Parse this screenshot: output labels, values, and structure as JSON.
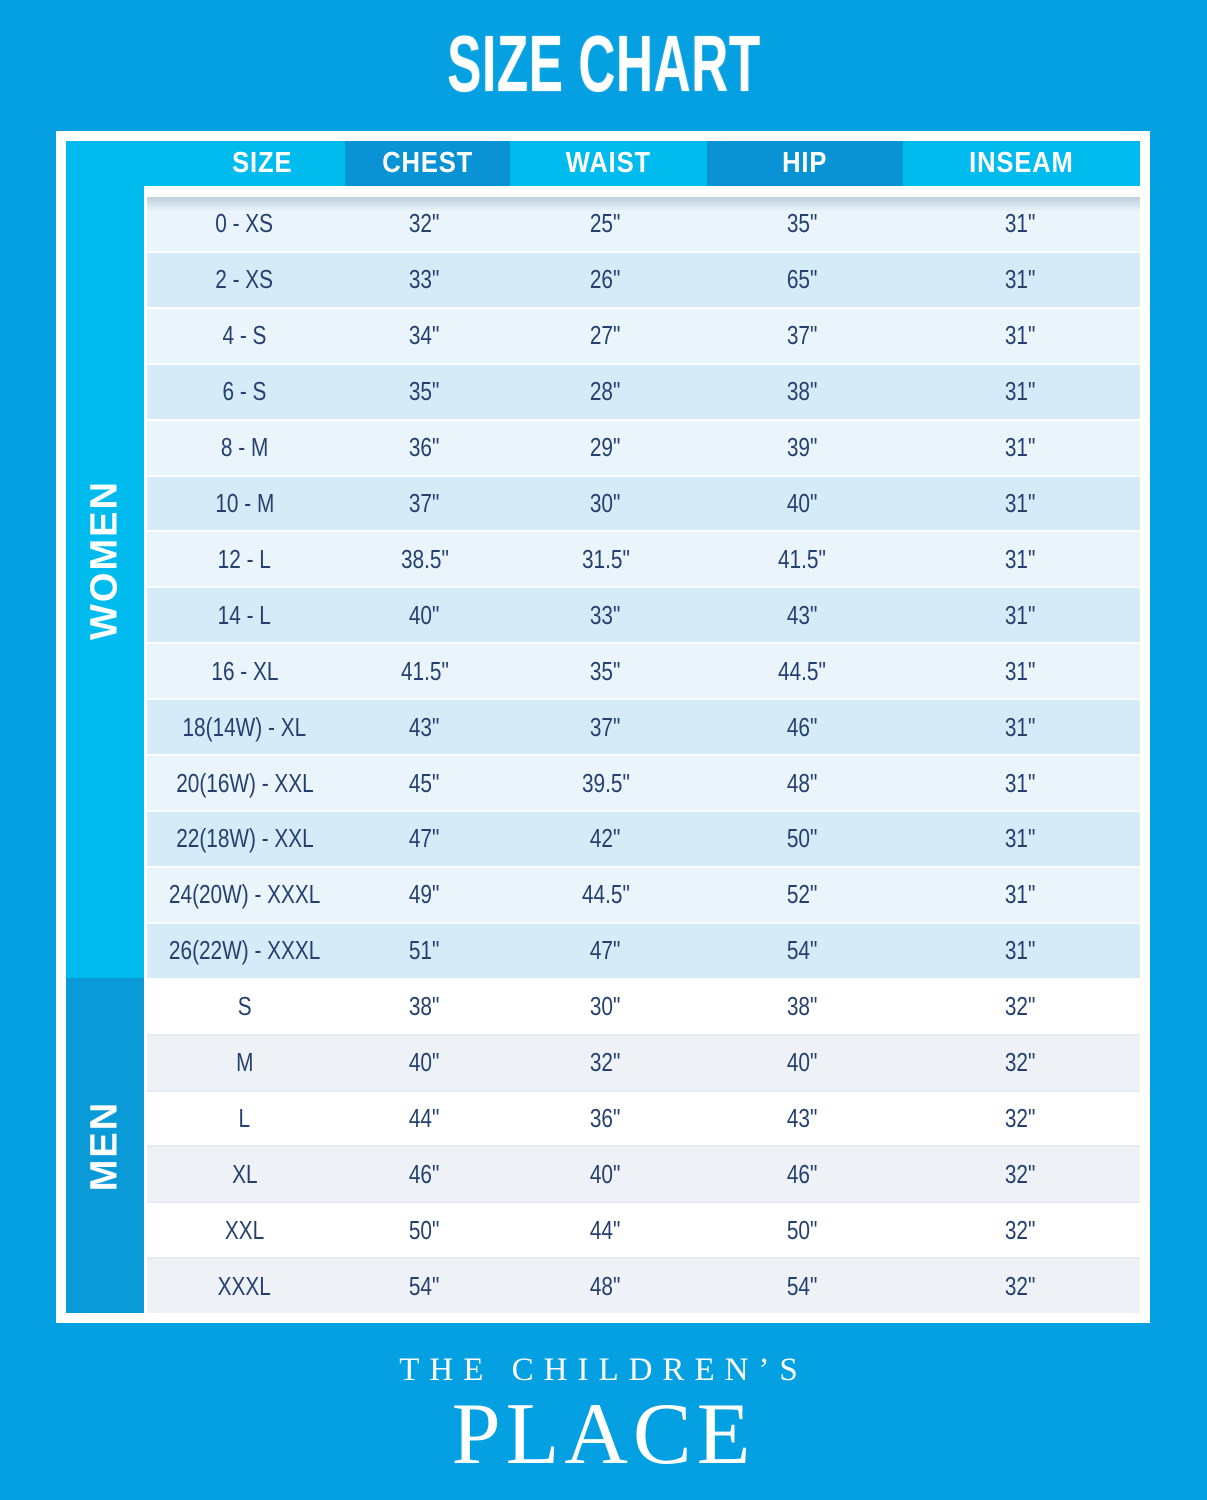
{
  "page": {
    "title": "SIZE CHART"
  },
  "brand": {
    "line1": "THE CHILDREN’S",
    "line2": "PLACE"
  },
  "colors": {
    "background": "#04A0E1",
    "header_cyan": "#00BCEE",
    "header_dark_blue": "#0A93D4",
    "men_strip_blue": "#0B9AD8",
    "women_row_light": "#E9F4FB",
    "women_row_shaded": "#D5EBF7",
    "men_row_light": "#FFFFFF",
    "men_row_shaded": "#EEF2F7",
    "value_text_navy": "#25406F",
    "frame_white": "#FFFFFF"
  },
  "table": {
    "headers": [
      "SIZE",
      "CHEST",
      "WAIST",
      "HIP",
      "INSEAM"
    ],
    "sections": [
      {
        "label": "WOMEN",
        "rows": [
          [
            "0 - XS",
            "32\"",
            "25\"",
            "35\"",
            "31\""
          ],
          [
            "2 - XS",
            "33\"",
            "26\"",
            "65\"",
            "31\""
          ],
          [
            "4 - S",
            "34\"",
            "27\"",
            "37\"",
            "31\""
          ],
          [
            "6 - S",
            "35\"",
            "28\"",
            "38\"",
            "31\""
          ],
          [
            "8 - M",
            "36\"",
            "29\"",
            "39\"",
            "31\""
          ],
          [
            "10 - M",
            "37\"",
            "30\"",
            "40\"",
            "31\""
          ],
          [
            "12 - L",
            "38.5\"",
            "31.5\"",
            "41.5\"",
            "31\""
          ],
          [
            "14 - L",
            "40\"",
            "33\"",
            "43\"",
            "31\""
          ],
          [
            "16 - XL",
            "41.5\"",
            "35\"",
            "44.5\"",
            "31\""
          ],
          [
            "18(14W) - XL",
            "43\"",
            "37\"",
            "46\"",
            "31\""
          ],
          [
            "20(16W) - XXL",
            "45\"",
            "39.5\"",
            "48\"",
            "31\""
          ],
          [
            "22(18W) - XXL",
            "47\"",
            "42\"",
            "50\"",
            "31\""
          ],
          [
            "24(20W) - XXXL",
            "49\"",
            "44.5\"",
            "52\"",
            "31\""
          ],
          [
            "26(22W) - XXXL",
            "51\"",
            "47\"",
            "54\"",
            "31\""
          ]
        ]
      },
      {
        "label": "MEN",
        "rows": [
          [
            "S",
            "38\"",
            "30\"",
            "38\"",
            "32\""
          ],
          [
            "M",
            "40\"",
            "32\"",
            "40\"",
            "32\""
          ],
          [
            "L",
            "44\"",
            "36\"",
            "43\"",
            "32\""
          ],
          [
            "XL",
            "46\"",
            "40\"",
            "46\"",
            "32\""
          ],
          [
            "XXL",
            "50\"",
            "44\"",
            "50\"",
            "32\""
          ],
          [
            "XXXL",
            "54\"",
            "48\"",
            "54\"",
            "32\""
          ]
        ]
      }
    ]
  }
}
